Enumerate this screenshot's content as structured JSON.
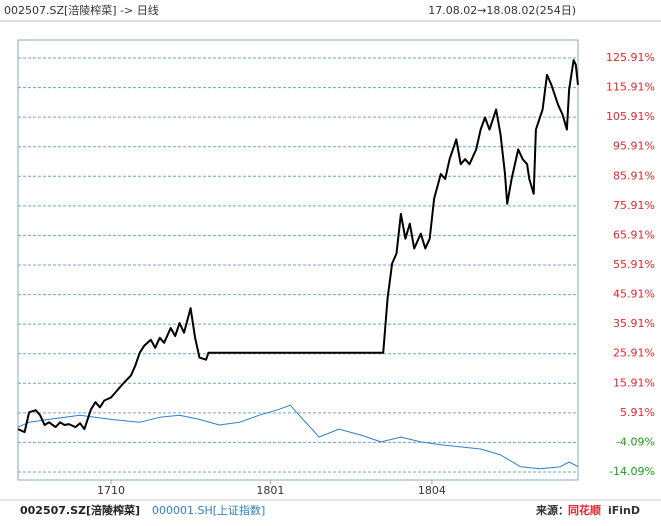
{
  "header": {
    "title": "002507.SZ[涪陵榨菜] -> 日线",
    "range": "17.08.02→18.08.02(254日)"
  },
  "chart_data": {
    "type": "line",
    "xlim": [
      0,
      253
    ],
    "xticks": [
      {
        "value": 42,
        "label": "1710"
      },
      {
        "value": 114,
        "label": "1801"
      },
      {
        "value": 187,
        "label": "1804"
      }
    ],
    "ylim": [
      -16.8,
      132
    ],
    "yticks": [
      {
        "value": 125.91,
        "label": "125.91%"
      },
      {
        "value": 115.91,
        "label": "115.91%"
      },
      {
        "value": 105.91,
        "label": "105.91%"
      },
      {
        "value": 95.91,
        "label": "95.91%"
      },
      {
        "value": 85.91,
        "label": "85.91%"
      },
      {
        "value": 75.91,
        "label": "75.91%"
      },
      {
        "value": 65.91,
        "label": "65.91%"
      },
      {
        "value": 55.91,
        "label": "55.91%"
      },
      {
        "value": 45.91,
        "label": "45.91%"
      },
      {
        "value": 35.91,
        "label": "35.91%"
      },
      {
        "value": 25.91,
        "label": "25.91%"
      },
      {
        "value": 15.91,
        "label": "15.91%"
      },
      {
        "value": 5.91,
        "label": "5.91%"
      },
      {
        "value": -4.09,
        "label": "-4.09%"
      },
      {
        "value": -14.09,
        "label": "-14.09%"
      }
    ],
    "grid": true,
    "grid_color": "#6fa3d3",
    "tick_colors": {
      "positive": "#e0282e",
      "negative": "#17a017"
    },
    "series": [
      {
        "name": "002507.SZ[涪陵榨菜]",
        "color": "#000000",
        "x": [
          0,
          3,
          5,
          8,
          10,
          12,
          14,
          17,
          19,
          21,
          23,
          26,
          28,
          30,
          33,
          35,
          37,
          39,
          42,
          44,
          46,
          48,
          51,
          53,
          55,
          57,
          60,
          62,
          64,
          66,
          69,
          71,
          73,
          75,
          78,
          80,
          82,
          85,
          86,
          165,
          167,
          169,
          171,
          173,
          175,
          177,
          179,
          182,
          184,
          186,
          188,
          191,
          193,
          195,
          198,
          200,
          202,
          204,
          207,
          209,
          211,
          213,
          216,
          218,
          220,
          221,
          223,
          226,
          228,
          230,
          231,
          233,
          234,
          237,
          239,
          241,
          244,
          246,
          248,
          249,
          251,
          252,
          253
        ],
        "values": [
          0.4,
          -0.6,
          6.1,
          6.8,
          5.1,
          1.8,
          2.7,
          1.1,
          2.7,
          1.8,
          2.1,
          1.1,
          2.4,
          0.4,
          7.1,
          9.5,
          7.8,
          10.1,
          11.1,
          12.8,
          14.5,
          16.2,
          18.5,
          21.9,
          26.2,
          28.6,
          30.6,
          27.9,
          31.3,
          29.6,
          34.6,
          31.9,
          36.3,
          33.0,
          41.3,
          31.3,
          24.6,
          23.9,
          26.2,
          26.2,
          44.7,
          56.4,
          59.8,
          73.2,
          64.8,
          69.9,
          61.5,
          66.5,
          61.5,
          64.8,
          78.3,
          86.7,
          85.0,
          91.7,
          98.4,
          90.0,
          91.7,
          90.0,
          95.0,
          101.7,
          105.8,
          101.7,
          108.5,
          100.1,
          86.7,
          76.6,
          85.0,
          95.0,
          91.7,
          90.0,
          85.0,
          80.0,
          101.7,
          108.5,
          120.2,
          116.8,
          110.1,
          106.8,
          101.7,
          115.2,
          125.2,
          123.6,
          116.8
        ]
      },
      {
        "name": "000001.SH[上证指数]",
        "color": "#2f7fc8",
        "x": [
          0,
          5,
          14,
          28,
          42,
          55,
          64,
          73,
          82,
          91,
          100,
          109,
          118,
          123,
          127,
          132,
          136,
          145,
          155,
          164,
          173,
          182,
          191,
          200,
          209,
          218,
          227,
          236,
          245,
          249,
          253
        ],
        "values": [
          1.1,
          2.7,
          3.7,
          5.1,
          3.7,
          2.7,
          4.4,
          5.1,
          3.7,
          1.8,
          2.7,
          5.1,
          7.1,
          8.5,
          5.1,
          1.1,
          -2.3,
          0.4,
          -1.6,
          -3.9,
          -2.3,
          -3.9,
          -4.9,
          -5.6,
          -6.3,
          -8.3,
          -12.3,
          -13.0,
          -12.3,
          -10.7,
          -12.3
        ]
      }
    ]
  },
  "source": "来源：",
  "source_brand": "同花顺",
  "source_product": "iFinD"
}
